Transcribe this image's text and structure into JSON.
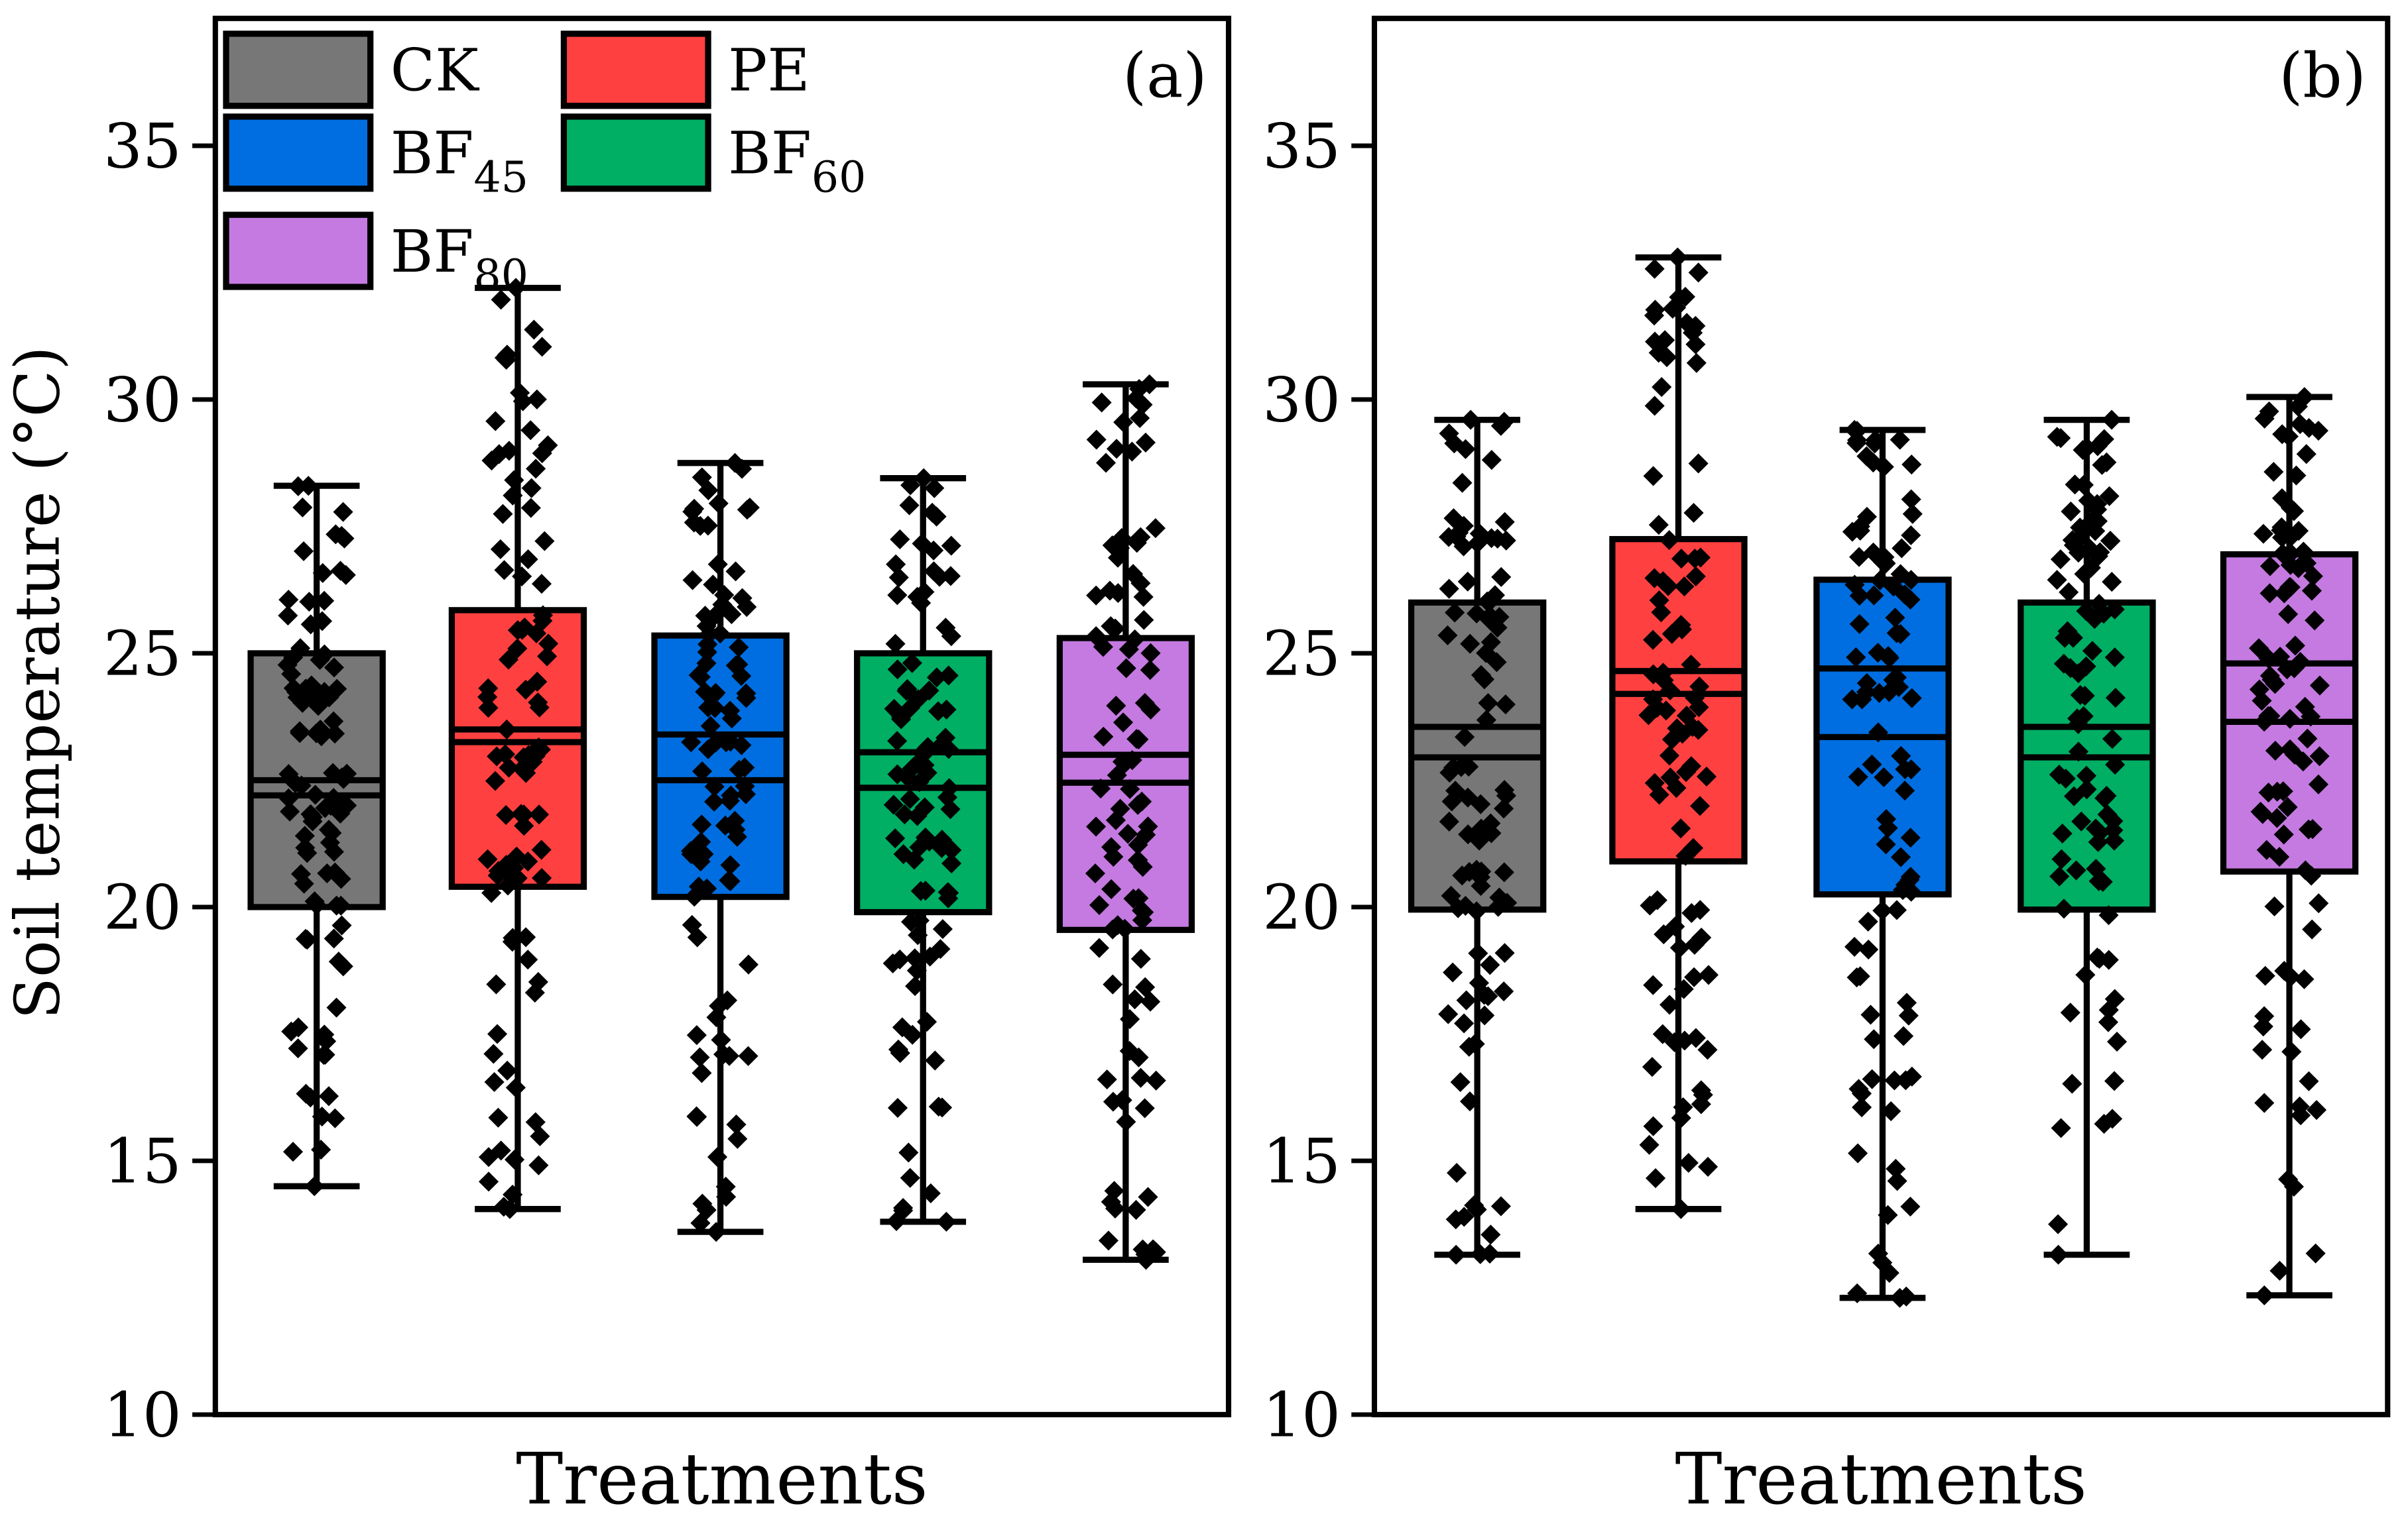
{
  "chart_data": [
    {
      "type": "box",
      "panel_label": "(a)",
      "xlabel": "Treatments",
      "ylabel": "Soil temperature (°C)",
      "ylim": [
        10,
        37.5
      ],
      "yticks": [
        10,
        15,
        20,
        25,
        30,
        35
      ],
      "legend": {
        "placement": "top-left"
      },
      "groups": [
        {
          "name": "CK",
          "color": "#777777",
          "min": 14.5,
          "q1": 20.0,
          "median": 22.2,
          "mean": 22.5,
          "q3": 25.0,
          "max": 28.3,
          "n_points": 100
        },
        {
          "name": "PE",
          "color": "#FF4040",
          "min": 14.05,
          "q1": 20.4,
          "median": 23.25,
          "mean": 23.5,
          "q3": 25.85,
          "max": 32.2,
          "n_points": 100
        },
        {
          "name": "BF45",
          "color": "#006EE0",
          "min": 13.6,
          "q1": 20.2,
          "median": 22.5,
          "mean": 23.4,
          "q3": 25.35,
          "max": 28.75,
          "n_points": 100
        },
        {
          "name": "BF60",
          "color": "#00AE64",
          "min": 13.8,
          "q1": 19.9,
          "median": 22.35,
          "mean": 23.05,
          "q3": 25.0,
          "max": 28.45,
          "n_points": 100
        },
        {
          "name": "BF80",
          "color": "#C47AE0",
          "min": 13.05,
          "q1": 19.55,
          "median": 22.45,
          "mean": 23.0,
          "q3": 25.3,
          "max": 30.3,
          "n_points": 100
        }
      ]
    },
    {
      "type": "box",
      "panel_label": "(b)",
      "xlabel": "Treatments",
      "ylabel": "",
      "ylim": [
        10,
        37.5
      ],
      "yticks": [
        10,
        15,
        20,
        25,
        30,
        35
      ],
      "groups": [
        {
          "name": "CK",
          "color": "#777777",
          "min": 13.15,
          "q1": 19.95,
          "median": 22.95,
          "mean": 23.55,
          "q3": 26.0,
          "max": 29.6,
          "n_points": 100
        },
        {
          "name": "PE",
          "color": "#FF4040",
          "min": 14.05,
          "q1": 20.9,
          "median": 24.2,
          "mean": 24.65,
          "q3": 27.25,
          "max": 32.8,
          "n_points": 100
        },
        {
          "name": "BF45",
          "color": "#006EE0",
          "min": 12.3,
          "q1": 20.25,
          "median": 23.35,
          "mean": 24.7,
          "q3": 26.45,
          "max": 29.4,
          "n_points": 100
        },
        {
          "name": "BF60",
          "color": "#00AE64",
          "min": 13.15,
          "q1": 19.95,
          "median": 22.95,
          "mean": 23.55,
          "q3": 26.0,
          "max": 29.6,
          "n_points": 100
        },
        {
          "name": "BF80",
          "color": "#C47AE0",
          "min": 12.35,
          "q1": 20.7,
          "median": 23.65,
          "mean": 24.8,
          "q3": 26.95,
          "max": 30.05,
          "n_points": 100
        }
      ]
    }
  ],
  "legend_items": [
    {
      "base": "CK",
      "sub": ""
    },
    {
      "base": "PE",
      "sub": ""
    },
    {
      "base": "BF",
      "sub": "45"
    },
    {
      "base": "BF",
      "sub": "60"
    },
    {
      "base": "BF",
      "sub": "80"
    }
  ]
}
